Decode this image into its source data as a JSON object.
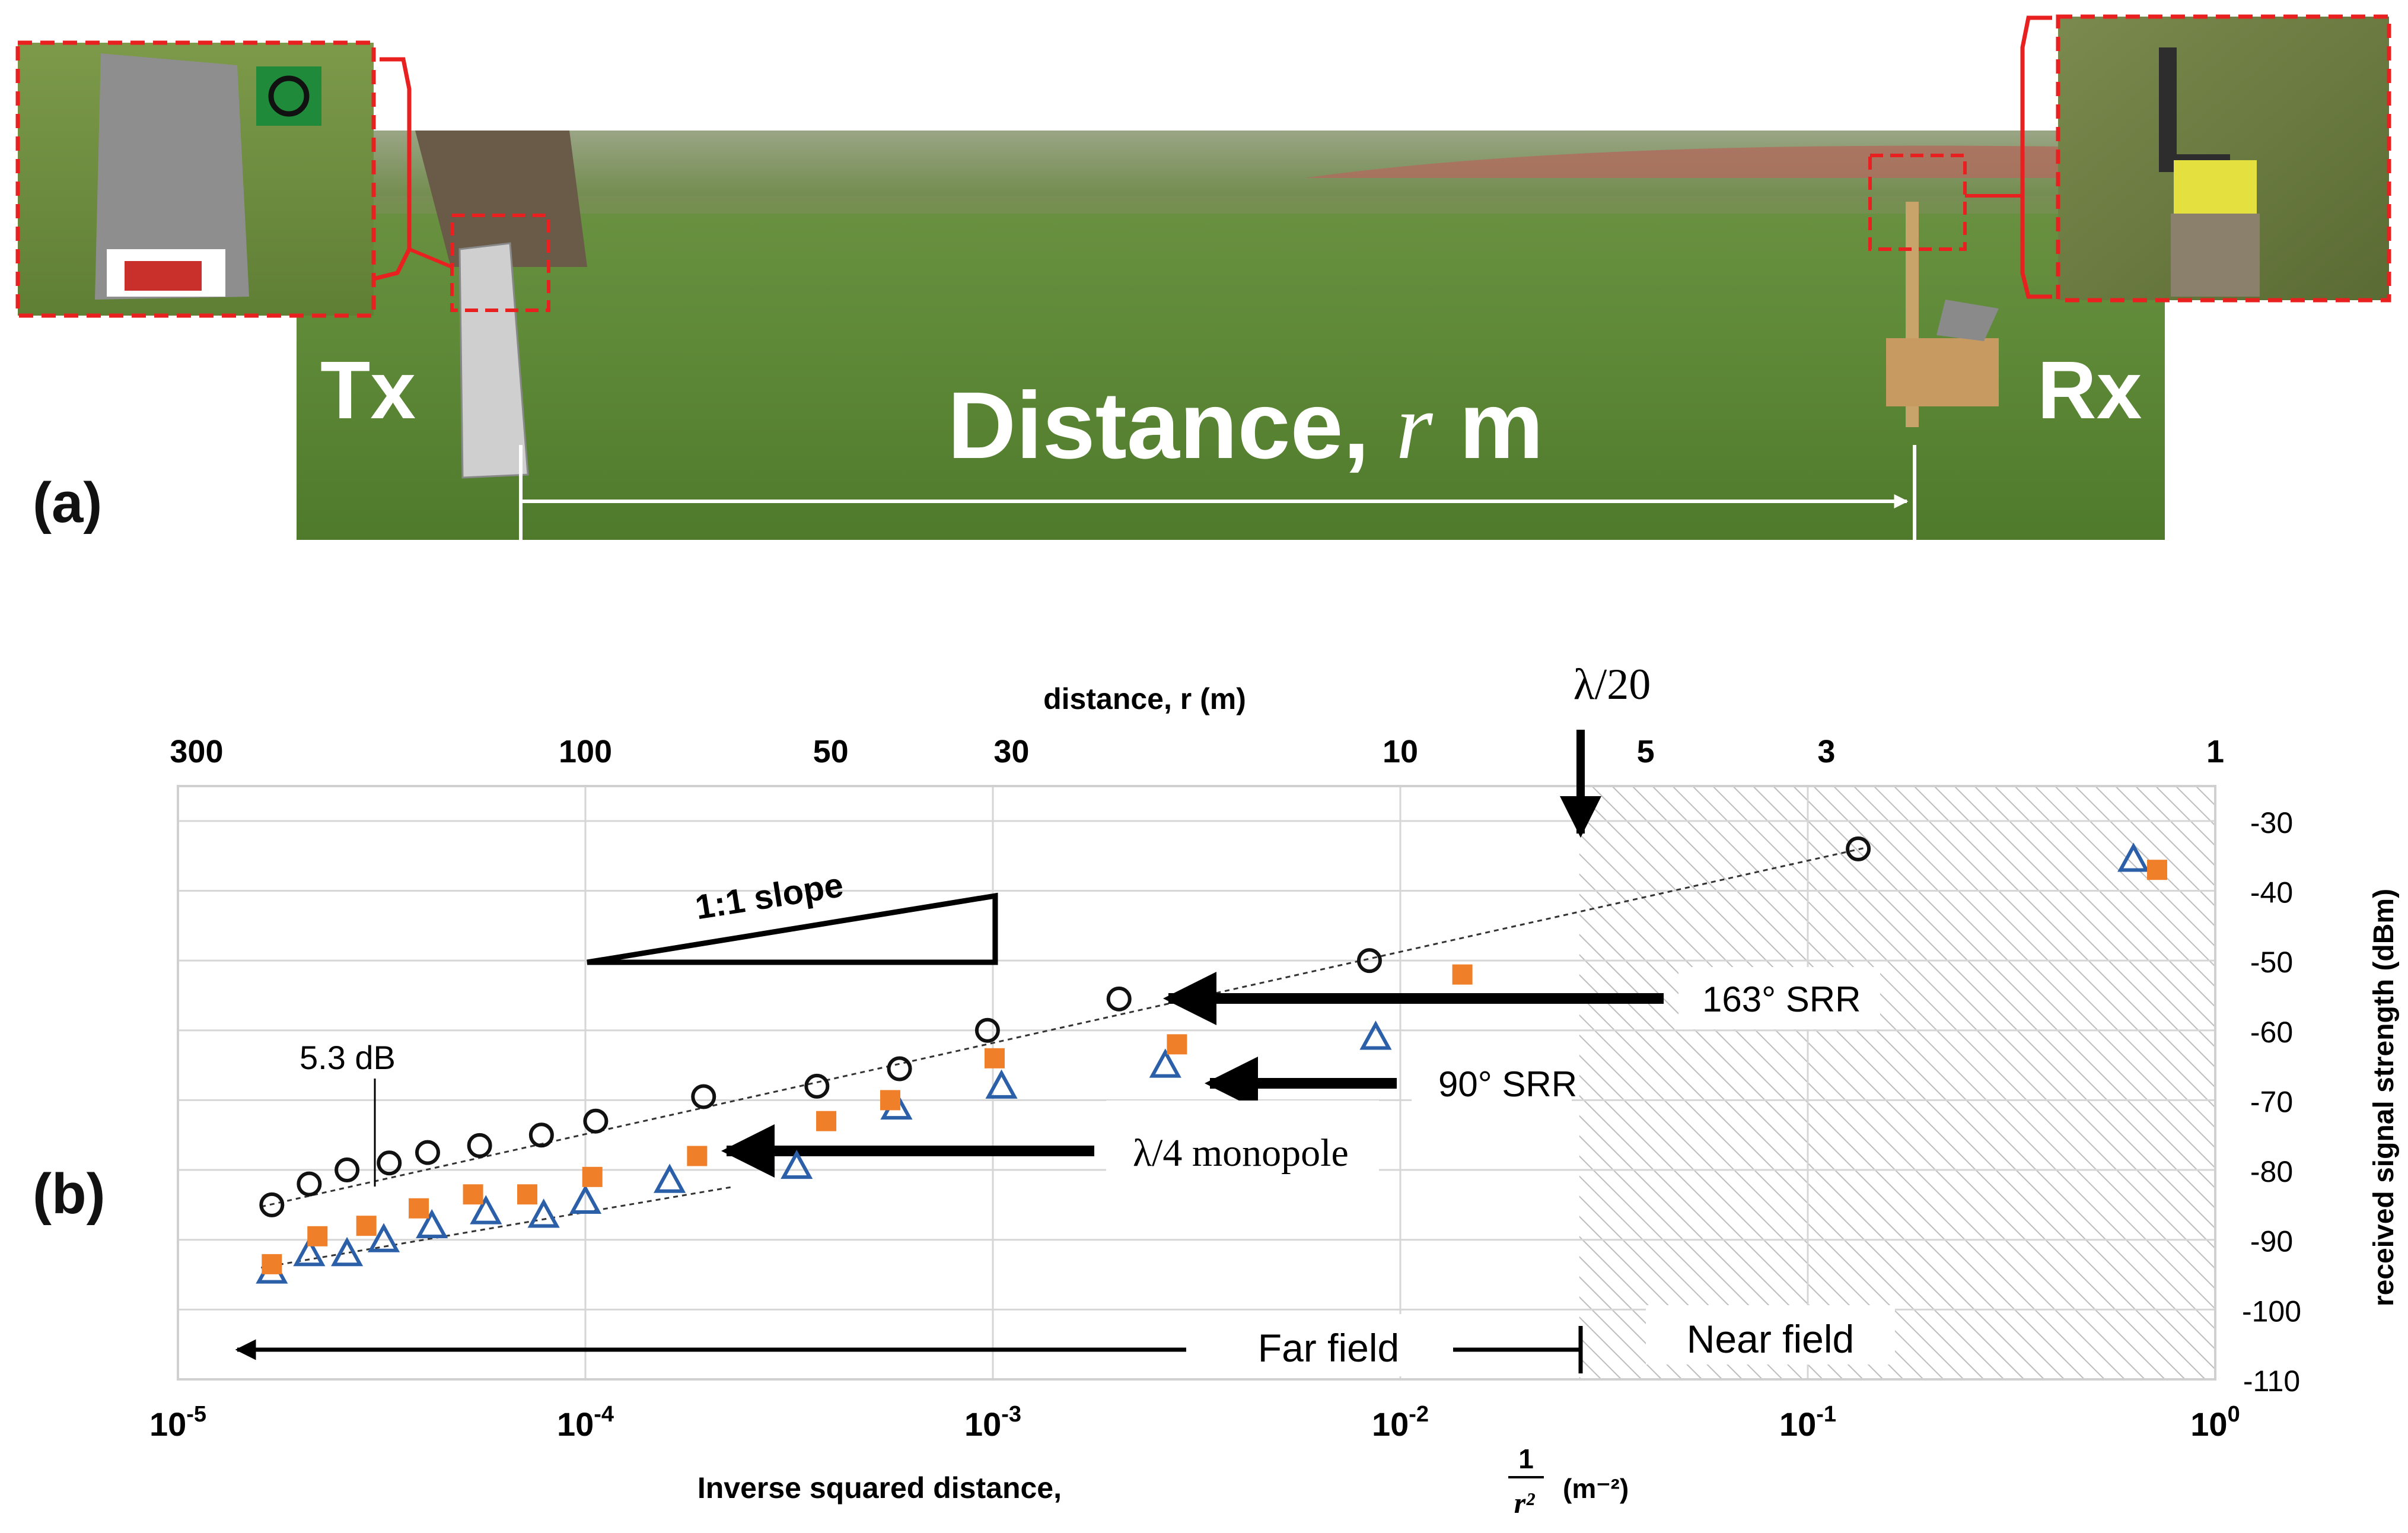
{
  "figure": {
    "panel_a": {
      "label": "(a)",
      "tx_label": "Tx",
      "rx_label": "Rx",
      "distance_label": "Distance, ",
      "distance_var": "r",
      "distance_unit": " m"
    },
    "panel_b": {
      "label": "(b)",
      "lambda_marker": "λ/20",
      "slope_label": "1:1 slope",
      "dB_annotation": "5.3 dB",
      "far_field_label": "Far field",
      "near_field_label": "Near field"
    }
  },
  "chart_data": {
    "type": "scatter",
    "xscale": "log",
    "xlim": [
      1e-05,
      1
    ],
    "ylim": [
      -110,
      -25
    ],
    "grid": true,
    "xlabel": "Inverse squared distance,",
    "xlabel_unit": "(m⁻²)",
    "ylabel": "received signal strength (dBm)",
    "top_axis_label": "distance, r (m)",
    "top_axis_ticks": [
      "300",
      "100",
      "50",
      "30",
      "10",
      "5",
      "3",
      "1"
    ],
    "top_axis_tick_values": [
      300,
      100,
      50,
      30,
      10,
      5,
      3,
      1
    ],
    "x_ticks": [
      1e-05,
      0.0001,
      0.001,
      0.01,
      0.1,
      1
    ],
    "x_tick_exponents": [
      "-5",
      "-4",
      "-3",
      "-2",
      "-1",
      "0"
    ],
    "y_ticks": [
      -30,
      -40,
      -50,
      -60,
      -70,
      -80,
      -90,
      -100,
      -110
    ],
    "series": [
      {
        "name": "163° SRR",
        "marker": "circle",
        "color": "#111111",
        "x": [
          1.7e-05,
          2.1e-05,
          2.6e-05,
          3.3e-05,
          4.1e-05,
          5.5e-05,
          7.8e-05,
          0.000106,
          0.000195,
          0.00037,
          0.00059,
          0.00097,
          0.00204,
          0.0084,
          0.133
        ],
        "y": [
          -85,
          -82,
          -80,
          -79,
          -77.5,
          -76.5,
          -75,
          -73,
          -69.5,
          -68,
          -65.5,
          -60,
          -55.5,
          -50,
          -34
        ]
      },
      {
        "name": "90° SRR",
        "marker": "triangle",
        "color": "#2b5fa8",
        "x": [
          1.7e-05,
          2.1e-05,
          2.6e-05,
          3.2e-05,
          4.2e-05,
          5.7e-05,
          7.9e-05,
          0.0001,
          0.000161,
          0.00033,
          0.00058,
          0.00105,
          0.00265,
          0.0087,
          0.63
        ],
        "y": [
          -94.5,
          -92,
          -92,
          -90,
          -88,
          -86,
          -86.5,
          -84.5,
          -81.5,
          -79.5,
          -71,
          -68,
          -65,
          -61,
          -35.5
        ]
      },
      {
        "name": "λ/4 monopole",
        "marker": "square",
        "color": "#f07f2a",
        "x": [
          1.7e-05,
          2.2e-05,
          2.9e-05,
          3.9e-05,
          5.3e-05,
          7.2e-05,
          0.000104,
          0.000188,
          0.00039,
          0.00056,
          0.00101,
          0.00283,
          0.0142,
          0.72
        ],
        "y": [
          -93.5,
          -89.5,
          -88,
          -85.5,
          -83.5,
          -83.5,
          -81,
          -78,
          -73,
          -70,
          -64,
          -62,
          -52,
          -37
        ]
      }
    ],
    "annotations": [
      {
        "text": "163° SRR",
        "arrow_to_x": 0.0021,
        "arrow_to_y": -55
      },
      {
        "text": "90° SRR",
        "arrow_to_x": 0.0029,
        "arrow_to_y": -66
      },
      {
        "text": "λ/4 monopole",
        "arrow_to_x": 0.00019,
        "arrow_to_y": -78
      },
      {
        "text": "5.3 dB"
      },
      {
        "text": "1:1 slope"
      }
    ],
    "near_field_boundary_x": 0.0275
  }
}
